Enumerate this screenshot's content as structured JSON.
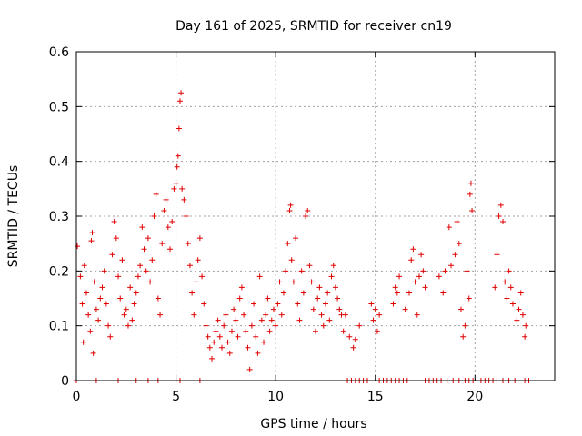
{
  "chart_data": {
    "type": "scatter",
    "title": "Day 161 of 2025, SRMTID for receiver cn19",
    "xlabel": "GPS time / hours",
    "ylabel": "SRMTID / TECUs",
    "xlim": [
      0,
      24
    ],
    "ylim": [
      0,
      0.6
    ],
    "x_ticks": [
      0,
      5,
      10,
      15,
      20
    ],
    "x_tick_labels": [
      "0",
      "5",
      "10",
      "15",
      "20"
    ],
    "y_ticks": [
      0,
      0.1,
      0.2,
      0.3,
      0.4,
      0.5,
      0.6
    ],
    "y_tick_labels": [
      "0",
      "0.1",
      "0.2",
      "0.3",
      "0.4",
      "0.5",
      "0.6"
    ],
    "grid": true,
    "marker": "plus",
    "color": "#e00000",
    "series": [
      {
        "name": "SRMTID",
        "points": [
          [
            0.05,
            0.245
          ],
          [
            0.2,
            0.19
          ],
          [
            0.3,
            0.14
          ],
          [
            0.35,
            0.07
          ],
          [
            0.4,
            0.21
          ],
          [
            0.5,
            0.16
          ],
          [
            0.6,
            0.12
          ],
          [
            0.7,
            0.09
          ],
          [
            0.75,
            0.255
          ],
          [
            0.8,
            0.27
          ],
          [
            0.85,
            0.05
          ],
          [
            0.9,
            0.18
          ],
          [
            1.0,
            0.13
          ],
          [
            1.1,
            0.11
          ],
          [
            1.2,
            0.15
          ],
          [
            1.3,
            0.17
          ],
          [
            1.4,
            0.2
          ],
          [
            1.5,
            0.14
          ],
          [
            1.6,
            0.1
          ],
          [
            1.7,
            0.08
          ],
          [
            1.8,
            0.23
          ],
          [
            1.9,
            0.29
          ],
          [
            2.0,
            0.26
          ],
          [
            2.1,
            0.19
          ],
          [
            2.2,
            0.15
          ],
          [
            2.3,
            0.22
          ],
          [
            2.4,
            0.12
          ],
          [
            2.5,
            0.13
          ],
          [
            2.6,
            0.1
          ],
          [
            2.7,
            0.17
          ],
          [
            2.8,
            0.11
          ],
          [
            2.9,
            0.14
          ],
          [
            3.0,
            0.16
          ],
          [
            3.1,
            0.19
          ],
          [
            3.2,
            0.21
          ],
          [
            3.3,
            0.28
          ],
          [
            3.4,
            0.24
          ],
          [
            3.5,
            0.2
          ],
          [
            3.6,
            0.26
          ],
          [
            3.7,
            0.18
          ],
          [
            3.8,
            0.22
          ],
          [
            3.9,
            0.3
          ],
          [
            4.0,
            0.34
          ],
          [
            4.1,
            0.15
          ],
          [
            4.2,
            0.12
          ],
          [
            4.3,
            0.25
          ],
          [
            4.4,
            0.31
          ],
          [
            4.5,
            0.33
          ],
          [
            4.6,
            0.28
          ],
          [
            4.7,
            0.24
          ],
          [
            4.8,
            0.29
          ],
          [
            4.9,
            0.35
          ],
          [
            5.0,
            0.36
          ],
          [
            5.05,
            0.39
          ],
          [
            5.1,
            0.41
          ],
          [
            5.15,
            0.46
          ],
          [
            5.2,
            0.51
          ],
          [
            5.25,
            0.525
          ],
          [
            5.3,
            0.35
          ],
          [
            5.4,
            0.33
          ],
          [
            5.5,
            0.3
          ],
          [
            5.6,
            0.25
          ],
          [
            5.7,
            0.21
          ],
          [
            5.8,
            0.16
          ],
          [
            5.9,
            0.12
          ],
          [
            6.0,
            0.18
          ],
          [
            6.1,
            0.22
          ],
          [
            6.2,
            0.26
          ],
          [
            6.3,
            0.19
          ],
          [
            6.4,
            0.14
          ],
          [
            6.5,
            0.1
          ],
          [
            6.6,
            0.08
          ],
          [
            6.7,
            0.06
          ],
          [
            6.8,
            0.04
          ],
          [
            6.9,
            0.07
          ],
          [
            7.0,
            0.09
          ],
          [
            7.1,
            0.11
          ],
          [
            7.2,
            0.08
          ],
          [
            7.3,
            0.06
          ],
          [
            7.4,
            0.1
          ],
          [
            7.5,
            0.12
          ],
          [
            7.6,
            0.07
          ],
          [
            7.7,
            0.05
          ],
          [
            7.8,
            0.09
          ],
          [
            7.9,
            0.13
          ],
          [
            8.0,
            0.11
          ],
          [
            8.1,
            0.08
          ],
          [
            8.2,
            0.15
          ],
          [
            8.3,
            0.17
          ],
          [
            8.4,
            0.12
          ],
          [
            8.5,
            0.09
          ],
          [
            8.6,
            0.06
          ],
          [
            8.7,
            0.02
          ],
          [
            8.8,
            0.1
          ],
          [
            8.9,
            0.14
          ],
          [
            9.0,
            0.08
          ],
          [
            9.1,
            0.05
          ],
          [
            9.2,
            0.19
          ],
          [
            9.3,
            0.11
          ],
          [
            9.4,
            0.07
          ],
          [
            9.5,
            0.12
          ],
          [
            9.6,
            0.15
          ],
          [
            9.7,
            0.09
          ],
          [
            9.8,
            0.11
          ],
          [
            9.9,
            0.13
          ],
          [
            10.0,
            0.1
          ],
          [
            10.1,
            0.14
          ],
          [
            10.2,
            0.18
          ],
          [
            10.3,
            0.12
          ],
          [
            10.4,
            0.16
          ],
          [
            10.5,
            0.2
          ],
          [
            10.6,
            0.25
          ],
          [
            10.7,
            0.31
          ],
          [
            10.75,
            0.32
          ],
          [
            10.8,
            0.22
          ],
          [
            10.9,
            0.18
          ],
          [
            11.0,
            0.26
          ],
          [
            11.1,
            0.14
          ],
          [
            11.2,
            0.11
          ],
          [
            11.3,
            0.2
          ],
          [
            11.4,
            0.16
          ],
          [
            11.5,
            0.3
          ],
          [
            11.6,
            0.31
          ],
          [
            11.7,
            0.21
          ],
          [
            11.8,
            0.18
          ],
          [
            11.9,
            0.13
          ],
          [
            12.0,
            0.09
          ],
          [
            12.1,
            0.15
          ],
          [
            12.2,
            0.17
          ],
          [
            12.3,
            0.12
          ],
          [
            12.4,
            0.1
          ],
          [
            12.5,
            0.14
          ],
          [
            12.6,
            0.16
          ],
          [
            12.7,
            0.11
          ],
          [
            12.8,
            0.19
          ],
          [
            12.9,
            0.21
          ],
          [
            13.0,
            0.17
          ],
          [
            13.1,
            0.15
          ],
          [
            13.2,
            0.13
          ],
          [
            13.3,
            0.12
          ],
          [
            13.4,
            0.09
          ],
          [
            13.5,
            0.12
          ],
          [
            13.7,
            0.08
          ],
          [
            13.9,
            0.06
          ],
          [
            14.0,
            0.075
          ],
          [
            14.2,
            0.1
          ],
          [
            14.8,
            0.14
          ],
          [
            14.9,
            0.11
          ],
          [
            15.0,
            0.13
          ],
          [
            15.1,
            0.09
          ],
          [
            15.2,
            0.12
          ],
          [
            15.9,
            0.14
          ],
          [
            16.0,
            0.17
          ],
          [
            16.1,
            0.16
          ],
          [
            16.2,
            0.19
          ],
          [
            16.5,
            0.13
          ],
          [
            16.7,
            0.16
          ],
          [
            16.8,
            0.22
          ],
          [
            16.9,
            0.24
          ],
          [
            17.0,
            0.18
          ],
          [
            17.1,
            0.12
          ],
          [
            17.2,
            0.19
          ],
          [
            17.3,
            0.23
          ],
          [
            17.4,
            0.2
          ],
          [
            17.5,
            0.17
          ],
          [
            18.2,
            0.19
          ],
          [
            18.4,
            0.16
          ],
          [
            18.5,
            0.2
          ],
          [
            18.7,
            0.28
          ],
          [
            18.8,
            0.21
          ],
          [
            19.0,
            0.23
          ],
          [
            19.1,
            0.29
          ],
          [
            19.2,
            0.25
          ],
          [
            19.3,
            0.13
          ],
          [
            19.4,
            0.08
          ],
          [
            19.5,
            0.1
          ],
          [
            19.6,
            0.2
          ],
          [
            19.7,
            0.15
          ],
          [
            19.75,
            0.34
          ],
          [
            19.8,
            0.36
          ],
          [
            19.85,
            0.31
          ],
          [
            21.0,
            0.17
          ],
          [
            21.1,
            0.23
          ],
          [
            21.2,
            0.3
          ],
          [
            21.3,
            0.32
          ],
          [
            21.4,
            0.29
          ],
          [
            21.5,
            0.18
          ],
          [
            21.6,
            0.15
          ],
          [
            21.7,
            0.2
          ],
          [
            21.8,
            0.17
          ],
          [
            21.9,
            0.14
          ],
          [
            22.1,
            0.11
          ],
          [
            22.2,
            0.13
          ],
          [
            22.3,
            0.16
          ],
          [
            22.4,
            0.12
          ],
          [
            22.5,
            0.08
          ],
          [
            22.55,
            0.1
          ]
        ],
        "zero_points": [
          0.0,
          1.0,
          2.1,
          3.0,
          3.6,
          4.1,
          5.0,
          5.2,
          6.2,
          13.6,
          13.8,
          14.0,
          14.2,
          14.4,
          14.6,
          15.2,
          15.4,
          15.6,
          15.8,
          16.0,
          16.2,
          16.4,
          16.6,
          17.5,
          17.7,
          17.9,
          18.1,
          18.3,
          18.6,
          18.9,
          19.2,
          19.5,
          19.7,
          19.9,
          20.1,
          20.3,
          20.5,
          20.7,
          20.9,
          21.1,
          21.4,
          21.7,
          22.0,
          22.5,
          22.7
        ]
      }
    ]
  }
}
